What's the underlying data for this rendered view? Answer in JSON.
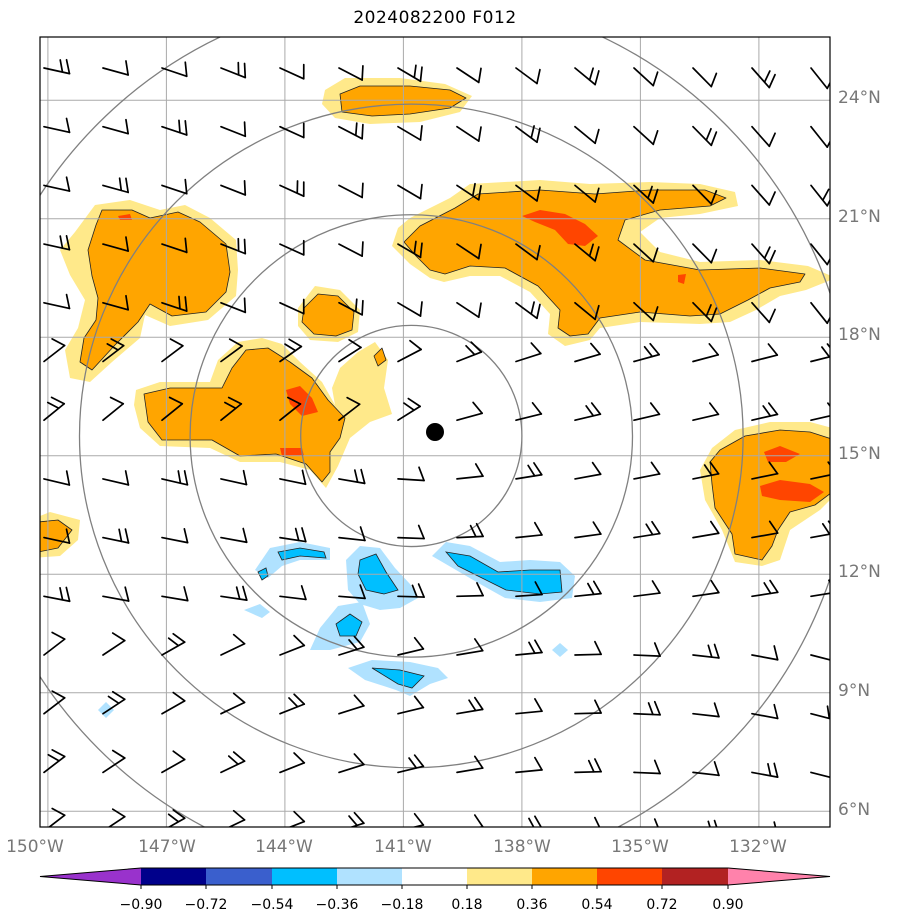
{
  "title": "2024082200 F012",
  "lat_labels": [
    "24°N",
    "21°N",
    "18°N",
    "15°N",
    "12°N",
    "9°N",
    "6°N"
  ],
  "lon_labels": [
    "150°W",
    "147°W",
    "144°W",
    "141°W",
    "138°W",
    "135°W",
    "132°W"
  ],
  "colorbar": {
    "ticks": [
      "−0.90",
      "−0.72",
      "−0.54",
      "−0.36",
      "−0.18",
      "0.18",
      "0.36",
      "0.54",
      "0.72",
      "0.90"
    ],
    "colors": [
      "#9932cc",
      "#00008b",
      "#3a5fcd",
      "#00bfff",
      "#b0e2ff",
      "#ffffff",
      "#ffe98a",
      "#ffa500",
      "#ff4500",
      "#b22222",
      "#ff82ab"
    ]
  },
  "map": {
    "extent": {
      "lon_min": -150.2,
      "lon_max": -130.2,
      "lat_min": 5.6,
      "lat_max": 25.6
    },
    "storm_center": {
      "lon": -140.8,
      "lat": 15.5
    },
    "range_rings_deg": [
      2.8,
      5.6,
      8.4,
      11.2
    ],
    "positive_field_colors": {
      "low": "#ffe98a",
      "mid": "#ffa500",
      "high": "#ff4500"
    },
    "negative_field_colors": {
      "low": "#b0e2ff",
      "mid": "#00bfff"
    }
  }
}
